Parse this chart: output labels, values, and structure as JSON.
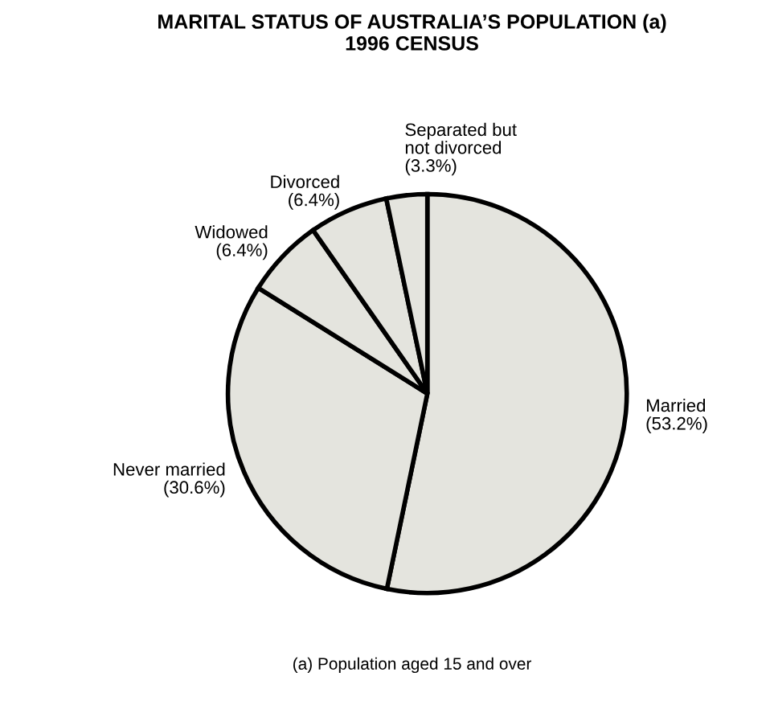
{
  "chart_data": {
    "type": "pie",
    "title": "MARITAL STATUS OF AUSTRALIA’S POPULATION (a)\n1996 CENSUS",
    "categories": [
      "Married",
      "Never married",
      "Widowed",
      "Divorced",
      "Separated but\nnot divorced"
    ],
    "values": [
      53.2,
      30.6,
      6.4,
      6.4,
      3.3
    ],
    "value_labels": [
      "(53.2%)",
      "(30.6%)",
      "(6.4%)",
      "(6.4%)",
      "(3.3%)"
    ],
    "colors": [
      "#e4e4de",
      "#e4e4de",
      "#e4e4de",
      "#e4e4de",
      "#e4e4de"
    ],
    "legend": false,
    "annotations": [
      "(a) Population aged 15 and over"
    ]
  }
}
